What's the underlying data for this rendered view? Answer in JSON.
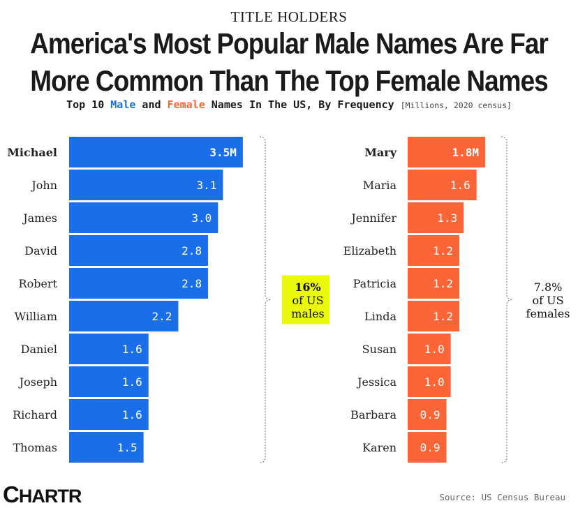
{
  "kicker": "TITLE HOLDERS",
  "title_line1": "America's Most Popular Male Names Are Far",
  "title_line2": "More Common Than The Top Female Names",
  "subtitle": {
    "pre": "Top 10 ",
    "male_word": "Male",
    "mid": " and ",
    "female_word": "Female",
    "post": " Names In The US, By Frequency ",
    "unit": "[Millions, 2020 census]"
  },
  "colors": {
    "male": "#1a6fe8",
    "female": "#fb6538",
    "highlight": "#eaf90b",
    "brace": "#888888"
  },
  "chart_data": [
    {
      "type": "bar",
      "orientation": "horizontal",
      "series": [
        {
          "name": "Male",
          "values": [
            3.5,
            3.1,
            3.0,
            2.8,
            2.8,
            2.2,
            1.6,
            1.6,
            1.6,
            1.5
          ]
        }
      ],
      "categories": [
        "Michael",
        "John",
        "James",
        "David",
        "Robert",
        "William",
        "Daniel",
        "Joseph",
        "Richard",
        "Thomas"
      ],
      "value_labels": [
        "3.5M",
        "3.1",
        "3.0",
        "2.8",
        "2.8",
        "2.2",
        "1.6",
        "1.6",
        "1.6",
        "1.5"
      ],
      "annotation": [
        "16%",
        "of US",
        "males"
      ]
    },
    {
      "type": "bar",
      "orientation": "horizontal",
      "series": [
        {
          "name": "Female",
          "values": [
            1.8,
            1.6,
            1.3,
            1.2,
            1.2,
            1.2,
            1.0,
            1.0,
            0.9,
            0.9
          ]
        }
      ],
      "categories": [
        "Mary",
        "Maria",
        "Jennifer",
        "Elizabeth",
        "Patricia",
        "Linda",
        "Susan",
        "Jessica",
        "Barbara",
        "Karen"
      ],
      "value_labels": [
        "1.8M",
        "1.6",
        "1.3",
        "1.2",
        "1.2",
        "1.2",
        "1.0",
        "1.0",
        "0.9",
        "0.9"
      ],
      "annotation": [
        "7.8%",
        "of US",
        "females"
      ]
    }
  ],
  "logo": {
    "c": "C",
    "rest": "HARTR"
  },
  "source": "Source: US Census Bureau"
}
